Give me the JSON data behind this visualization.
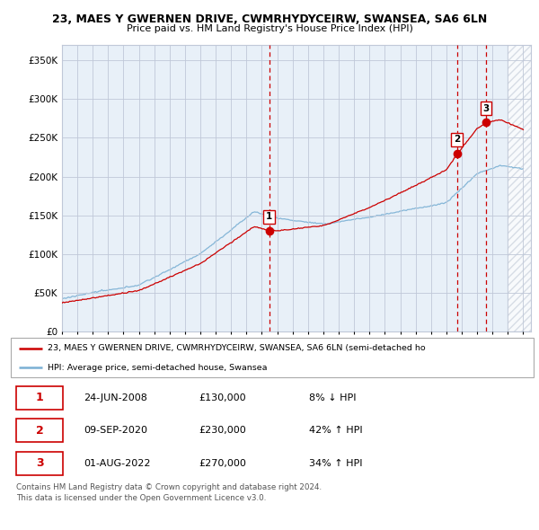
{
  "title": "23, MAES Y GWERNEN DRIVE, CWMRHYDYCEIRW, SWANSEA, SA6 6LN",
  "subtitle": "Price paid vs. HM Land Registry's House Price Index (HPI)",
  "ylabel_ticks": [
    "£0",
    "£50K",
    "£100K",
    "£150K",
    "£200K",
    "£250K",
    "£300K",
    "£350K"
  ],
  "ytick_vals": [
    0,
    50000,
    100000,
    150000,
    200000,
    250000,
    300000,
    350000
  ],
  "ylim": [
    0,
    370000
  ],
  "xlim_start": 1995,
  "xlim_end": 2025.5,
  "sale_dates": [
    2008.48,
    2020.69,
    2022.58
  ],
  "sale_prices": [
    130000,
    230000,
    270000
  ],
  "sale_labels": [
    "1",
    "2",
    "3"
  ],
  "sale_info": [
    {
      "num": "1",
      "date": "24-JUN-2008",
      "price": "£130,000",
      "hpi": "8% ↓ HPI"
    },
    {
      "num": "2",
      "date": "09-SEP-2020",
      "price": "£230,000",
      "hpi": "42% ↑ HPI"
    },
    {
      "num": "3",
      "date": "01-AUG-2022",
      "price": "£270,000",
      "hpi": "34% ↑ HPI"
    }
  ],
  "legend_line1": "23, MAES Y GWERNEN DRIVE, CWMRHYDYCEIRW, SWANSEA, SA6 6LN (semi-detached ho",
  "legend_line2": "HPI: Average price, semi-detached house, Swansea",
  "footer": "Contains HM Land Registry data © Crown copyright and database right 2024.\nThis data is licensed under the Open Government Licence v3.0.",
  "line_color_red": "#cc0000",
  "line_color_blue": "#7ab0d4",
  "vline_color": "#cc0000",
  "bg_chart": "#e8f0f8",
  "bg_white": "#ffffff",
  "grid_color": "#c0c8d8",
  "hatch_color": "#c8d0dc"
}
